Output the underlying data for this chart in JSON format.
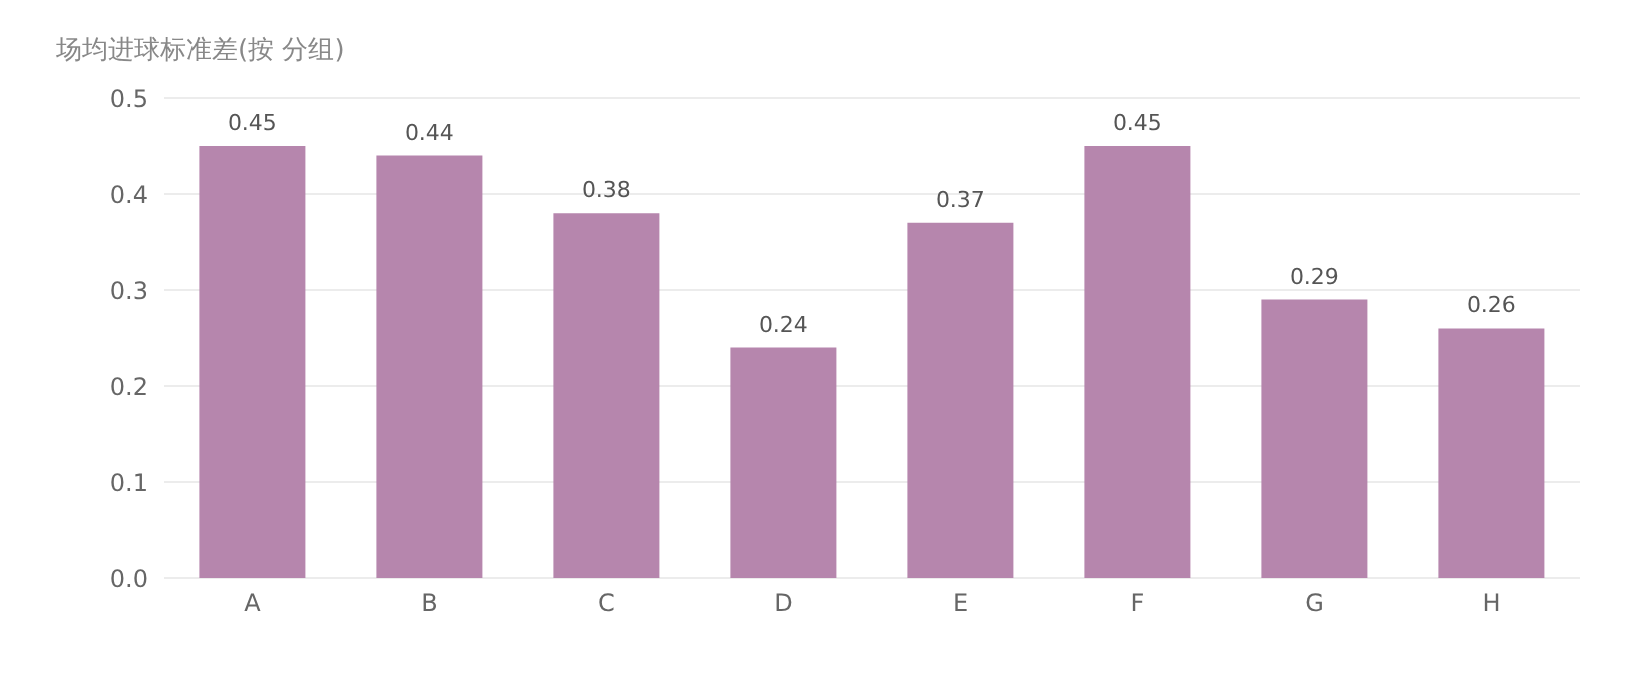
{
  "chart_data": {
    "type": "bar",
    "title": "场均进球标准差(按 分组)",
    "categories": [
      "A",
      "B",
      "C",
      "D",
      "E",
      "F",
      "G",
      "H"
    ],
    "values": [
      0.45,
      0.44,
      0.38,
      0.24,
      0.37,
      0.45,
      0.29,
      0.26
    ],
    "color": "#b686ad",
    "data_labels": true,
    "grid": "y",
    "legend": false,
    "ylim": [
      0,
      0.5
    ],
    "yticks": [
      {
        "value": 0,
        "label": "0.0"
      },
      0.1,
      0.2,
      0.3,
      0.4,
      0.5
    ]
  }
}
